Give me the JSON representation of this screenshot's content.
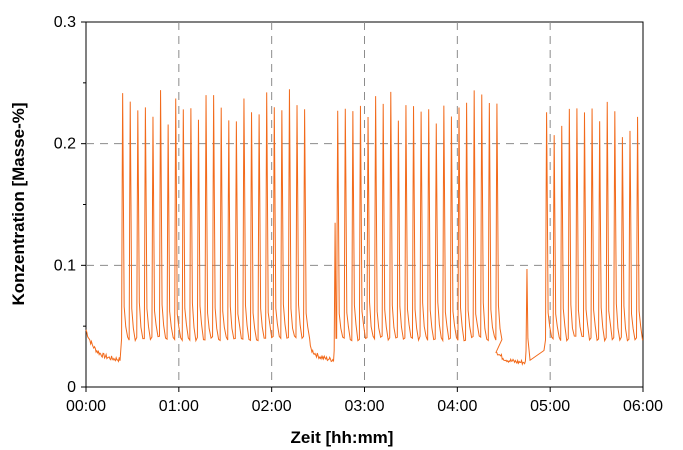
{
  "chart_data": {
    "type": "line",
    "title": "",
    "xlabel": "Zeit [hh:mm]",
    "ylabel": "Konzentration [Masse-%]",
    "xlim": [
      0,
      360
    ],
    "ylim": [
      0,
      0.3
    ],
    "x_ticks": [
      "00:00",
      "01:00",
      "02:00",
      "03:00",
      "04:00",
      "05:00",
      "06:00"
    ],
    "y_ticks": [
      "0",
      "0.1",
      "0.2",
      "0.3"
    ],
    "grid": true,
    "legend": "none",
    "series_color": "#f26a1b",
    "series": [
      {
        "name": "",
        "x_unit": "minutes",
        "pulse_trains": [
          {
            "start": 23,
            "end": 145,
            "period": 4.9,
            "peak": 0.23,
            "base": 0.04
          },
          {
            "start": 162,
            "end": 265,
            "period": 4.9,
            "peak": 0.23,
            "base": 0.04
          },
          {
            "start": 297,
            "end": 360,
            "period": 4.9,
            "peak": 0.22,
            "base": 0.04
          }
        ],
        "gaps": [
          {
            "start": 0,
            "end": 22,
            "level": 0.022
          },
          {
            "start": 145,
            "end": 160,
            "level": 0.022
          },
          {
            "start": 265,
            "end": 296,
            "level": 0.02
          }
        ],
        "isolated_peaks": [
          {
            "x": 161,
            "y": 0.135
          },
          {
            "x": 285,
            "y": 0.097
          }
        ]
      }
    ]
  }
}
